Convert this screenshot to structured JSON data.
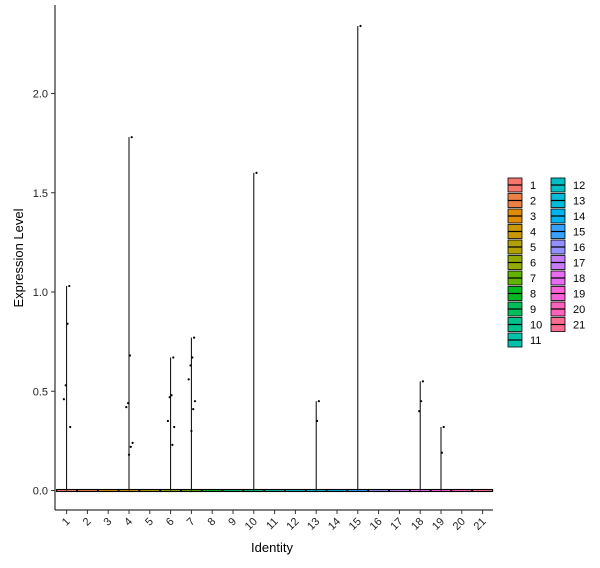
{
  "chart_data": {
    "type": "violin",
    "xlabel": "Identity",
    "ylabel": "Expression Level",
    "categories": [
      "1",
      "2",
      "3",
      "4",
      "5",
      "6",
      "7",
      "8",
      "9",
      "10",
      "11",
      "12",
      "13",
      "14",
      "15",
      "16",
      "17",
      "18",
      "19",
      "20",
      "21"
    ],
    "ylim": [
      -0.05,
      2.4
    ],
    "yticks": [
      0.0,
      0.5,
      1.0,
      1.5,
      2.0
    ],
    "ytick_labels": [
      "0.0",
      "0.5",
      "1.0",
      "1.5",
      "2.0"
    ],
    "violin_max": [
      1.03,
      0,
      0,
      1.78,
      0,
      0.67,
      0.77,
      0,
      0,
      1.6,
      0,
      0,
      0.45,
      0,
      2.34,
      0,
      0,
      0.55,
      0.32,
      0,
      0
    ],
    "points": [
      {
        "cat": "1",
        "y": 1.03
      },
      {
        "cat": "1",
        "y": 0.84
      },
      {
        "cat": "1",
        "y": 0.53
      },
      {
        "cat": "1",
        "y": 0.46
      },
      {
        "cat": "1",
        "y": 0.32
      },
      {
        "cat": "4",
        "y": 1.78
      },
      {
        "cat": "4",
        "y": 0.68
      },
      {
        "cat": "4",
        "y": 0.44
      },
      {
        "cat": "4",
        "y": 0.42
      },
      {
        "cat": "4",
        "y": 0.24
      },
      {
        "cat": "4",
        "y": 0.22
      },
      {
        "cat": "4",
        "y": 0.18
      },
      {
        "cat": "6",
        "y": 0.67
      },
      {
        "cat": "6",
        "y": 0.48
      },
      {
        "cat": "6",
        "y": 0.47
      },
      {
        "cat": "6",
        "y": 0.35
      },
      {
        "cat": "6",
        "y": 0.32
      },
      {
        "cat": "6",
        "y": 0.23
      },
      {
        "cat": "7",
        "y": 0.77
      },
      {
        "cat": "7",
        "y": 0.67
      },
      {
        "cat": "7",
        "y": 0.63
      },
      {
        "cat": "7",
        "y": 0.56
      },
      {
        "cat": "7",
        "y": 0.45
      },
      {
        "cat": "7",
        "y": 0.41
      },
      {
        "cat": "7",
        "y": 0.3
      },
      {
        "cat": "10",
        "y": 1.6
      },
      {
        "cat": "13",
        "y": 0.45
      },
      {
        "cat": "13",
        "y": 0.35
      },
      {
        "cat": "15",
        "y": 2.34
      },
      {
        "cat": "18",
        "y": 0.55
      },
      {
        "cat": "18",
        "y": 0.45
      },
      {
        "cat": "18",
        "y": 0.4
      },
      {
        "cat": "19",
        "y": 0.32
      },
      {
        "cat": "19",
        "y": 0.19
      }
    ],
    "legend": {
      "placement": "right",
      "columns": 2,
      "labels": [
        "1",
        "2",
        "3",
        "4",
        "5",
        "6",
        "7",
        "8",
        "9",
        "10",
        "11",
        "12",
        "13",
        "14",
        "15",
        "16",
        "17",
        "18",
        "19",
        "20",
        "21"
      ],
      "colors": [
        "#F8766D",
        "#EE8044",
        "#DF8C00",
        "#C99800",
        "#B0A100",
        "#93AA00",
        "#62B200",
        "#00B81F",
        "#00BD5C",
        "#00C08B",
        "#00C1AA",
        "#00BFC4",
        "#00BBDA",
        "#00B4EF",
        "#35A2FF",
        "#9590FF",
        "#C77CFF",
        "#E76BF3",
        "#FA62DB",
        "#FF62BC",
        "#FF6C91"
      ]
    },
    "grid": false
  }
}
